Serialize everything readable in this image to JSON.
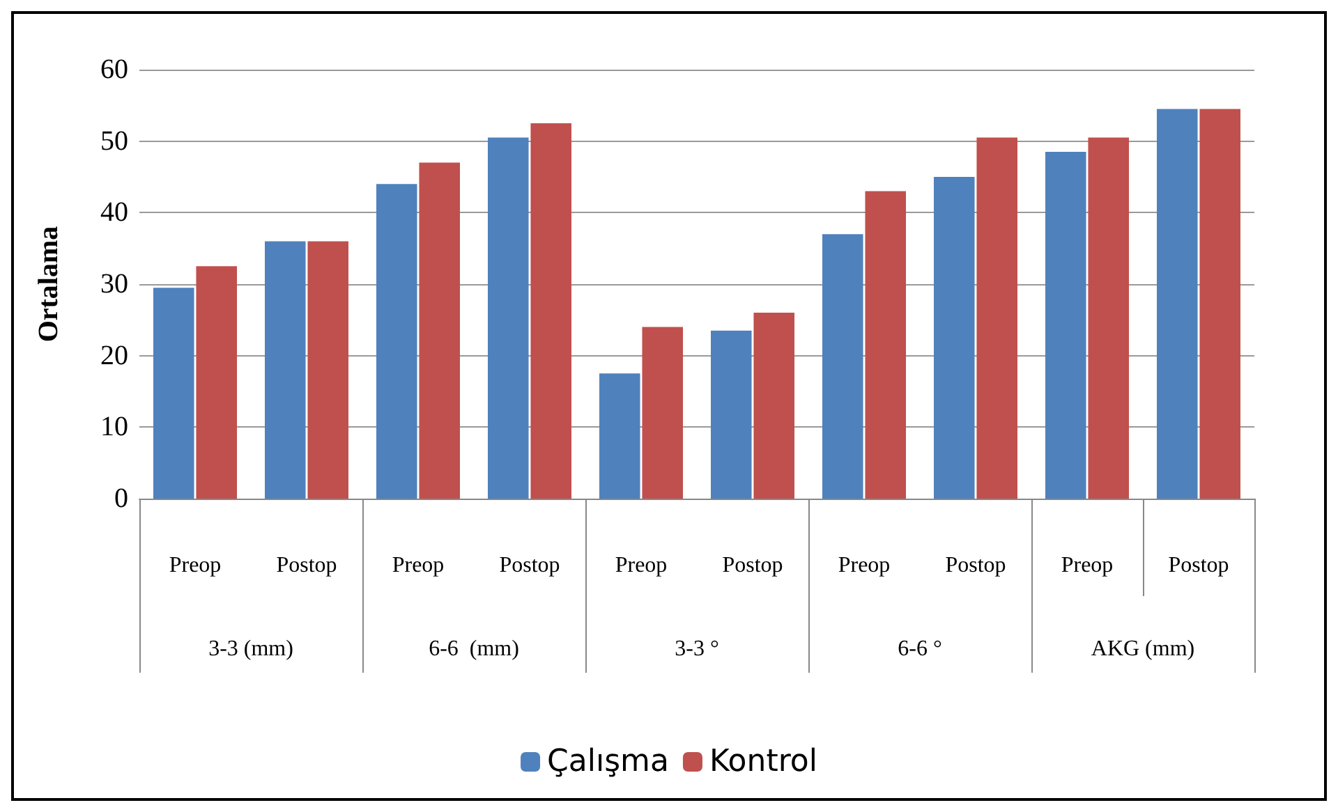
{
  "chart_data": {
    "type": "bar",
    "ylabel": "Ortalama",
    "categories": [
      "Preop",
      "Postop",
      "Preop",
      "Postop",
      "Preop",
      "Postop",
      "Preop",
      "Postop",
      "Preop",
      "Postop"
    ],
    "annotations": [
      "3-3 (mm)",
      "6-6  (mm)",
      "3-3 °",
      "6-6 °",
      "AKG (mm)"
    ],
    "series": [
      {
        "name": "Çalışma",
        "color": "#4f81bd",
        "values": [
          29.5,
          36,
          44,
          50.5,
          17.5,
          23.5,
          37,
          45,
          48.5,
          54.5
        ]
      },
      {
        "name": "Kontrol",
        "color": "#c0504d",
        "values": [
          32.5,
          36,
          47,
          52.5,
          24,
          26,
          43,
          50.5,
          50.5,
          54.5
        ]
      }
    ],
    "ylim": [
      0,
      60
    ],
    "yticks": [
      0,
      10,
      20,
      30,
      40,
      50,
      60
    ],
    "grid": "y",
    "legend": "bottom"
  }
}
